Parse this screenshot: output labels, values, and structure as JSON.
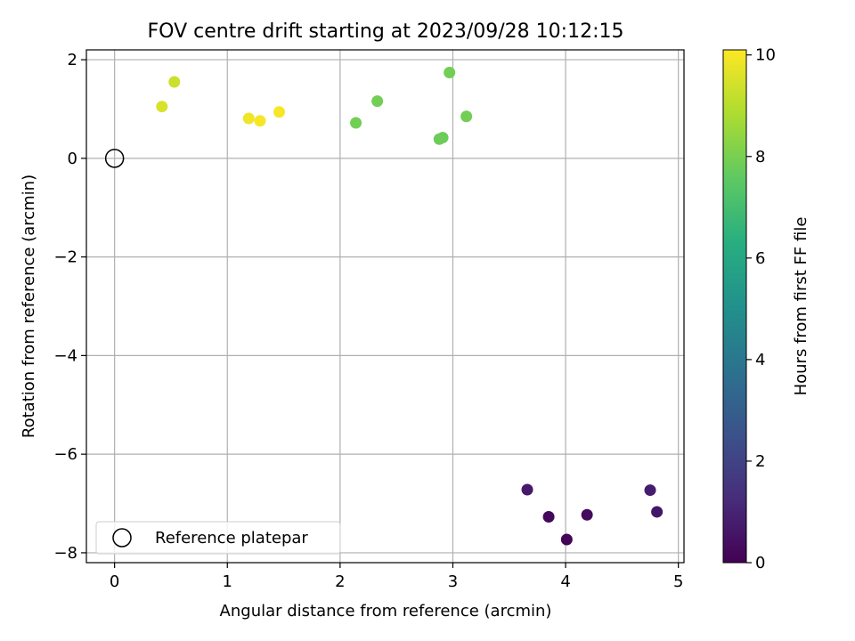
{
  "chart_data": {
    "type": "scatter",
    "title": "FOV centre drift starting at 2023/09/28 10:12:15",
    "xlabel": "Angular distance from reference (arcmin)",
    "ylabel": "Rotation from reference (arcmin)",
    "xlim": [
      -0.25,
      5.05
    ],
    "ylim": [
      -8.2,
      2.2
    ],
    "x_ticks": [
      0,
      1,
      2,
      3,
      4,
      5
    ],
    "x_tick_labels": [
      "0",
      "1",
      "2",
      "3",
      "4",
      "5"
    ],
    "y_ticks": [
      -8,
      -6,
      -4,
      -2,
      0,
      2
    ],
    "y_tick_labels": [
      "−8",
      "−6",
      "−4",
      "−2",
      "0",
      "2"
    ],
    "grid": true,
    "colormap": "viridis",
    "colorbar": {
      "label": "Hours from first FF file",
      "range": [
        0,
        10.1
      ],
      "ticks": [
        0,
        2,
        4,
        6,
        8,
        10
      ],
      "tick_labels": [
        "0",
        "2",
        "4",
        "6",
        "8",
        "10"
      ]
    },
    "legend": {
      "placement": "lower-left",
      "entries": [
        {
          "label": "Reference platepar",
          "marker": "open-circle"
        }
      ]
    },
    "reference": {
      "x": 0,
      "y": 0
    },
    "points": [
      {
        "x": 3.66,
        "y": -6.72,
        "hours": 0.7
      },
      {
        "x": 3.85,
        "y": -7.27,
        "hours": 0.2
      },
      {
        "x": 4.01,
        "y": -7.73,
        "hours": 0.1
      },
      {
        "x": 4.19,
        "y": -7.23,
        "hours": 0.3
      },
      {
        "x": 4.75,
        "y": -6.73,
        "hours": 0.8
      },
      {
        "x": 4.81,
        "y": -7.17,
        "hours": 0.6
      },
      {
        "x": 2.14,
        "y": 0.72,
        "hours": 7.9
      },
      {
        "x": 2.33,
        "y": 1.16,
        "hours": 7.9
      },
      {
        "x": 2.88,
        "y": 0.39,
        "hours": 7.8
      },
      {
        "x": 2.91,
        "y": 0.42,
        "hours": 7.8
      },
      {
        "x": 2.97,
        "y": 1.74,
        "hours": 7.9
      },
      {
        "x": 3.12,
        "y": 0.85,
        "hours": 7.9
      },
      {
        "x": 0.42,
        "y": 1.05,
        "hours": 9.5
      },
      {
        "x": 0.53,
        "y": 1.55,
        "hours": 9.3
      },
      {
        "x": 1.19,
        "y": 0.81,
        "hours": 9.9
      },
      {
        "x": 1.29,
        "y": 0.76,
        "hours": 10.0
      },
      {
        "x": 1.46,
        "y": 0.94,
        "hours": 10.0
      }
    ]
  }
}
